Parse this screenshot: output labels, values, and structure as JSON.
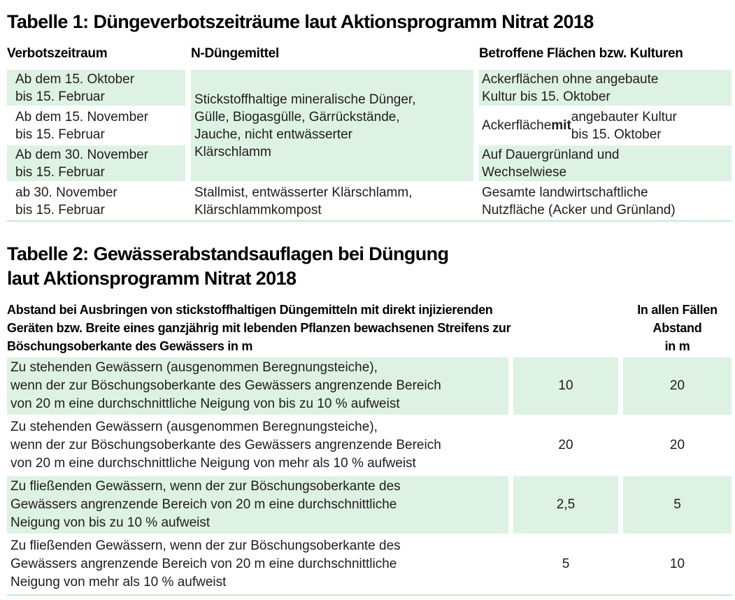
{
  "colors": {
    "cell_green": "#def2e4",
    "rule_green": "#c9e8d1",
    "text": "#1d1d1b"
  },
  "table1": {
    "title": "Tabelle 1: Düngeverbotszeiträume laut Aktionsprogramm Nitrat 2018",
    "headers": {
      "col1": "Verbotszeitraum",
      "col2": "N-Düngemittel",
      "col3": "Betroffene Flächen bzw. Kulturen"
    },
    "periods": {
      "row1": "Ab dem 15. Oktober\nbis 15. Februar",
      "row2": "Ab dem 15. November\nbis 15. Februar",
      "row3": "Ab dem 30. November\nbis 15. Februar",
      "row4": "ab 30. November\nbis 15. Februar"
    },
    "fertilizers": {
      "merged_rows_1_to_3": "Stickstoffhaltige mineralische Dünger,\nGülle, Biogasgülle, Gärrückstände,\nJauche, nicht entwässerter\nKlärschlamm",
      "row4": "Stallmist, entwässerter Klärschlamm,\nKlärschlammkompost"
    },
    "areas": {
      "row1": "Ackerflächen ohne angebaute\nKultur bis 15. Oktober",
      "row2_prefix": "Ackerfläche ",
      "row2_bold": "mit",
      "row2_suffix": " angebauter Kultur\nbis 15. Oktober",
      "row3": "Auf Dauergrünland und\nWechselwiese",
      "row4": "Gesamte landwirtschaftliche\nNutzfläche (Acker und Grünland)"
    }
  },
  "table2": {
    "title": "Tabelle 2: Gewässerabstandsauflagen bei Düngung\nlaut Aktionsprogramm Nitrat 2018",
    "header_main": "Abstand bei Ausbringen von stickstoffhaltigen Düngemitteln mit direkt injizierenden\nGeräten bzw. Breite eines ganzjährig mit lebenden Pflanzen bewachsenen Streifens zur\nBöschungsoberkante des Gewässers in m",
    "header_right": "In allen Fällen\nAbstand\nin m",
    "rows": [
      {
        "description": "Zu stehenden Gewässern (ausgenommen Beregnungsteiche),\nwenn der zur Böschungsoberkante des Gewässers angrenzende Bereich\nvon 20 m eine durchschnittliche Neigung von bis zu 10 % aufweist",
        "distance": "10",
        "all_cases": "20"
      },
      {
        "description": "Zu stehenden Gewässern (ausgenommen Beregnungsteiche),\nwenn der zur Böschungsoberkante des Gewässers angrenzende Bereich\nvon 20 m eine durchschnittliche Neigung von mehr als 10 % aufweist",
        "distance": "20",
        "all_cases": "20"
      },
      {
        "description": "Zu fließenden Gewässern, wenn der zur Böschungsoberkante des\nGewässers angrenzende Bereich von 20 m eine durchschnittliche\nNeigung von bis zu 10 % aufweist",
        "distance": "2,5",
        "all_cases": "5"
      },
      {
        "description": "Zu fließenden Gewässern, wenn der zur Böschungsoberkante des\nGewässers angrenzende Bereich von 20 m eine durchschnittliche\nNeigung von mehr als 10 % aufweist",
        "distance": "5",
        "all_cases": "10"
      }
    ]
  }
}
